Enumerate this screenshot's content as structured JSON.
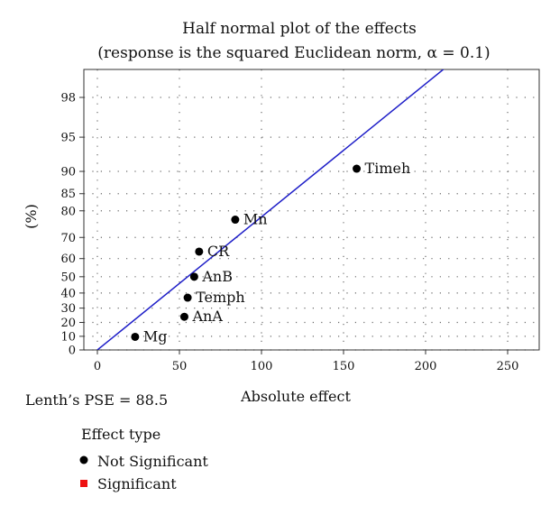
{
  "chart_data": {
    "type": "scatter",
    "title": "Half normal plot of the effects",
    "subtitle": "(response is the squared Euclidean norm, α = 0.1)",
    "xlabel": "Absolute effect",
    "ylabel": "(%)",
    "xlim": [
      -10,
      255
    ],
    "x_ticks": [
      0,
      50,
      100,
      150,
      200,
      250
    ],
    "y_ticks": [
      0,
      10,
      20,
      30,
      40,
      50,
      60,
      70,
      80,
      85,
      90,
      95,
      98
    ],
    "y_scale": "half-normal probability",
    "grid": true,
    "series": [
      {
        "name": "Not Significant",
        "color": "#000000",
        "points": [
          {
            "label": "Mg",
            "x": 23,
            "y": 9.6
          },
          {
            "label": "AnA",
            "x": 53,
            "y": 24
          },
          {
            "label": "Temph",
            "x": 55,
            "y": 37
          },
          {
            "label": "AnB",
            "x": 59,
            "y": 50
          },
          {
            "label": "CR",
            "x": 62,
            "y": 63.5
          },
          {
            "label": "Mn",
            "x": 84,
            "y": 77
          },
          {
            "label": "Timeh",
            "x": 158,
            "y": 90.5
          }
        ]
      },
      {
        "name": "Significant",
        "color": "#ee1111",
        "points": []
      }
    ],
    "fit_line": {
      "color": "#1f1fc8",
      "from": {
        "x": 0,
        "y": 0
      },
      "to": {
        "x": 226,
        "y": 99.44
      }
    },
    "annotation": "Lenth’s PSE = 88.5",
    "legend": {
      "title": "Effect type",
      "placement": "bottom-left",
      "items": [
        {
          "label": "Not Significant",
          "marker": "circle",
          "color": "#000000"
        },
        {
          "label": "Significant",
          "marker": "square",
          "color": "#ee1111"
        }
      ]
    }
  }
}
